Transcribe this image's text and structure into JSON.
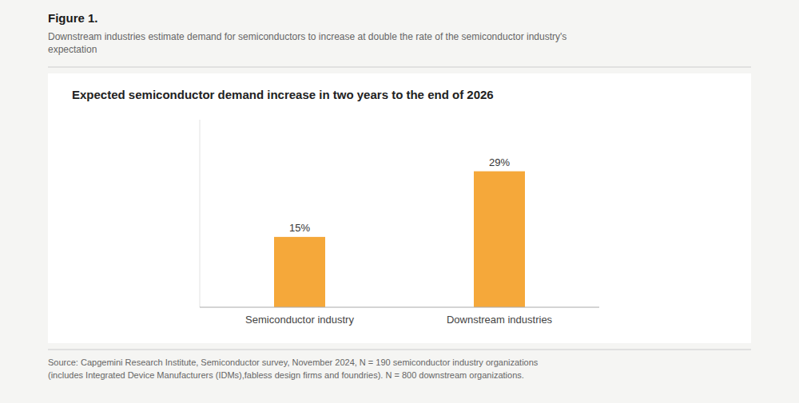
{
  "chart_data": {
    "type": "bar",
    "title": "Expected semiconductor demand increase in two years to the end of 2026",
    "subtitle": "Downstream industries estimate demand for semiconductors to increase at double the rate of the semiconductor industry's\nexpectation",
    "annotations": [
      "Figure 1.",
      "Source: Capgemini Research Institute, Semiconductor survey, November 2024, N = 190 semiconductor industry organizations\n(includes Integrated Device Manufacturers (IDMs),fabless design firms and foundries). N = 800 downstream organizations."
    ],
    "categories": [
      "Semiconductor industry",
      "Downstream industries"
    ],
    "values": [
      15,
      29
    ],
    "value_labels": [
      "15%",
      "29%"
    ],
    "data_labels": true,
    "color": "#F5A83A",
    "ylim": [
      0,
      40
    ],
    "tick_labels": "x",
    "grid": false
  }
}
